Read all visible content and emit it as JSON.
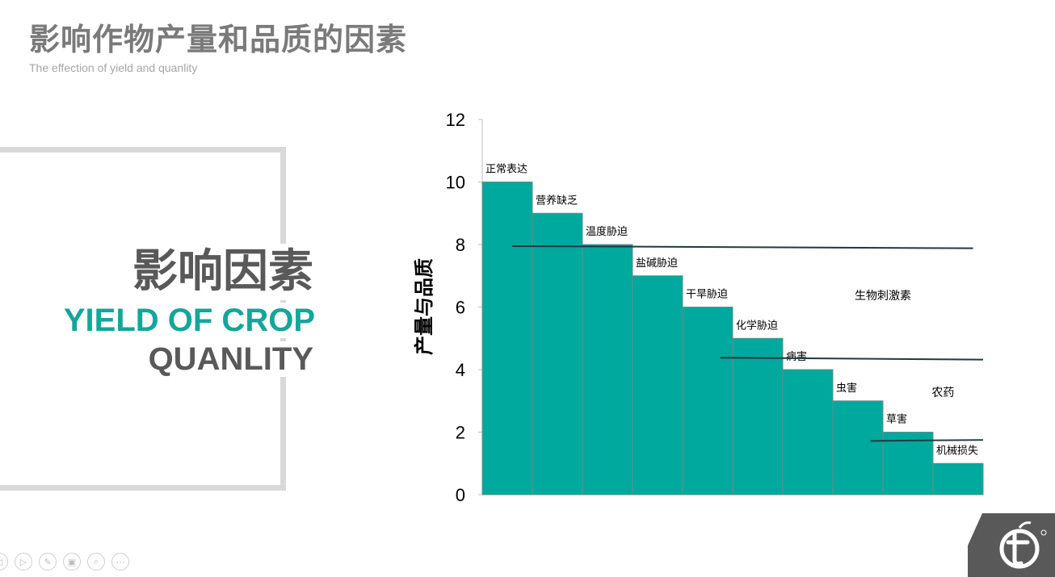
{
  "slide": {
    "title": "影响作物产量和品质的因素",
    "subtitle": "The effection of yield and quanlity"
  },
  "card": {
    "heading": "影响因素",
    "line1": "YIELD OF CROP",
    "line2": "QUANLITY"
  },
  "colors": {
    "bar": "#00a99d",
    "bar_border": "#6a8f8c",
    "accent": "#14a69b",
    "title": "#7a7a7a",
    "frame": "#d9d9d9"
  },
  "chart_data": {
    "type": "bar",
    "ylabel": "产量与品质",
    "ylim": [
      0,
      12
    ],
    "yticks": [
      0,
      2,
      4,
      6,
      8,
      10,
      12
    ],
    "grid": false,
    "categories": [
      "正常表达",
      "营养缺乏",
      "温度胁迫",
      "盐碱胁迫",
      "干旱胁迫",
      "化学胁迫",
      "病害",
      "虫害",
      "草害",
      "机械损失"
    ],
    "values": [
      10,
      9,
      8,
      7,
      6,
      5,
      4,
      3,
      2,
      1
    ],
    "annotations": [
      {
        "text": "生物刺激素",
        "x_from": 0.6,
        "x_to": 9.8,
        "y_from": 7.95,
        "y_to": 7.88
      },
      {
        "text": "农药",
        "x_from": 4.75,
        "x_to": 10.0,
        "y_from": 4.38,
        "y_to": 4.32
      },
      {
        "text": "",
        "x_from": 7.75,
        "x_to": 10.0,
        "y_from": 1.72,
        "y_to": 1.75
      }
    ],
    "annotation_labels": [
      {
        "text": "生物刺激素",
        "x": 8.0,
        "y": 6.25
      },
      {
        "text": "农药",
        "x": 9.2,
        "y": 3.15
      }
    ]
  },
  "toolbar": {
    "icons": [
      "prev-icon",
      "next-icon",
      "pen-icon",
      "screens-icon",
      "zoom-icon",
      "more-icon"
    ]
  }
}
